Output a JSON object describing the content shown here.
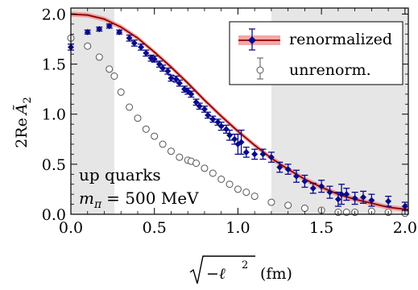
{
  "chart_data": {
    "type": "scatter",
    "xlabel_radicand": "−ℓ",
    "xlabel_power": "2",
    "xlabel_unit": "(fm)",
    "ylabel_main": "2Re",
    "ylabel_symbol": "Ã",
    "ylabel_sub": "2",
    "xlim": [
      0.0,
      2.02
    ],
    "ylim": [
      0.0,
      2.06
    ],
    "xticks": [
      0.0,
      0.5,
      1.0,
      1.5,
      2.0
    ],
    "xtick_labels": [
      "0.0",
      "0.5",
      "1.0",
      "1.5",
      "2.0"
    ],
    "yticks": [
      0.0,
      0.5,
      1.0,
      1.5,
      2.0
    ],
    "ytick_labels": [
      "0.0",
      "0.5",
      "1.0",
      "1.5",
      "2.0"
    ],
    "shaded_regions": [
      [
        0.0,
        0.26
      ],
      [
        1.2,
        2.02
      ]
    ],
    "annotations": {
      "line1": "up quarks",
      "line2_symbol": "m",
      "line2_sub": "π",
      "line2_value": "= 500 MeV"
    },
    "legend": {
      "position": "top-right",
      "entries": [
        "renormalized",
        "unrenorm."
      ]
    },
    "colors": {
      "renormalized": "#0a0a8a",
      "unrenorm": "#555555",
      "fit_line": "#8b0000",
      "fit_band": "#f08080",
      "shade": "#e6e6e6"
    },
    "fit_curve": {
      "x": [
        0.0,
        0.1,
        0.2,
        0.3,
        0.4,
        0.5,
        0.6,
        0.7,
        0.8,
        0.9,
        1.0,
        1.1,
        1.2,
        1.3,
        1.4,
        1.5,
        1.6,
        1.7,
        1.8,
        1.9,
        2.0,
        2.02
      ],
      "y": [
        2.0,
        1.99,
        1.95,
        1.87,
        1.76,
        1.62,
        1.47,
        1.31,
        1.14,
        0.98,
        0.83,
        0.69,
        0.56,
        0.45,
        0.35,
        0.27,
        0.2,
        0.15,
        0.11,
        0.07,
        0.05,
        0.045
      ]
    },
    "series": [
      {
        "name": "renormalized",
        "x": [
          0.0,
          0.1,
          0.17,
          0.23,
          0.29,
          0.35,
          0.38,
          0.42,
          0.45,
          0.48,
          0.5,
          0.53,
          0.55,
          0.58,
          0.6,
          0.63,
          0.65,
          0.68,
          0.7,
          0.72,
          0.75,
          0.77,
          0.8,
          0.82,
          0.85,
          0.88,
          0.9,
          0.93,
          0.95,
          0.98,
          1.0,
          1.02,
          1.05,
          1.1,
          1.15,
          1.2,
          1.25,
          1.3,
          1.35,
          1.4,
          1.45,
          1.5,
          1.55,
          1.6,
          1.62,
          1.65,
          1.7,
          1.75,
          1.8,
          1.9,
          2.0
        ],
        "y": [
          1.67,
          1.82,
          1.85,
          1.88,
          1.82,
          1.76,
          1.71,
          1.67,
          1.61,
          1.56,
          1.55,
          1.5,
          1.46,
          1.43,
          1.36,
          1.35,
          1.31,
          1.25,
          1.23,
          1.2,
          1.12,
          1.08,
          1.05,
          0.99,
          0.95,
          0.92,
          0.88,
          0.85,
          0.79,
          0.75,
          0.7,
          0.72,
          0.62,
          0.6,
          0.6,
          0.57,
          0.47,
          0.45,
          0.38,
          0.33,
          0.26,
          0.28,
          0.22,
          0.15,
          0.2,
          0.2,
          0.16,
          0.17,
          0.14,
          0.13,
          0.08
        ],
        "err": [
          0.03,
          0.02,
          0.02,
          0.02,
          0.02,
          0.03,
          0.03,
          0.03,
          0.03,
          0.03,
          0.03,
          0.03,
          0.03,
          0.03,
          0.03,
          0.03,
          0.03,
          0.03,
          0.03,
          0.03,
          0.03,
          0.03,
          0.03,
          0.03,
          0.03,
          0.03,
          0.04,
          0.04,
          0.05,
          0.05,
          0.1,
          0.12,
          0.05,
          0.05,
          0.05,
          0.05,
          0.05,
          0.05,
          0.06,
          0.06,
          0.05,
          0.06,
          0.06,
          0.07,
          0.1,
          0.06,
          0.06,
          0.06,
          0.06,
          0.05,
          0.04
        ]
      },
      {
        "name": "unrenorm.",
        "x": [
          0.0,
          0.1,
          0.17,
          0.23,
          0.26,
          0.3,
          0.35,
          0.4,
          0.45,
          0.5,
          0.55,
          0.6,
          0.65,
          0.7,
          0.72,
          0.75,
          0.8,
          0.85,
          0.9,
          0.95,
          1.0,
          1.05,
          1.1,
          1.2,
          1.3,
          1.4,
          1.5,
          1.6,
          1.65,
          1.7,
          1.8,
          1.9,
          2.0
        ],
        "y": [
          1.76,
          1.68,
          1.57,
          1.45,
          1.38,
          1.22,
          1.07,
          0.96,
          0.85,
          0.78,
          0.7,
          0.63,
          0.57,
          0.54,
          0.53,
          0.51,
          0.46,
          0.41,
          0.35,
          0.3,
          0.25,
          0.22,
          0.18,
          0.12,
          0.09,
          0.06,
          0.04,
          0.02,
          0.02,
          0.02,
          0.03,
          0.02,
          0.01
        ],
        "err": [
          0.03,
          0.02,
          0.02,
          0.02,
          0.02,
          0.02,
          0.02,
          0.02,
          0.02,
          0.02,
          0.02,
          0.02,
          0.02,
          0.02,
          0.02,
          0.02,
          0.02,
          0.02,
          0.02,
          0.02,
          0.02,
          0.02,
          0.02,
          0.02,
          0.02,
          0.02,
          0.02,
          0.02,
          0.02,
          0.02,
          0.02,
          0.02,
          0.02
        ]
      }
    ]
  }
}
